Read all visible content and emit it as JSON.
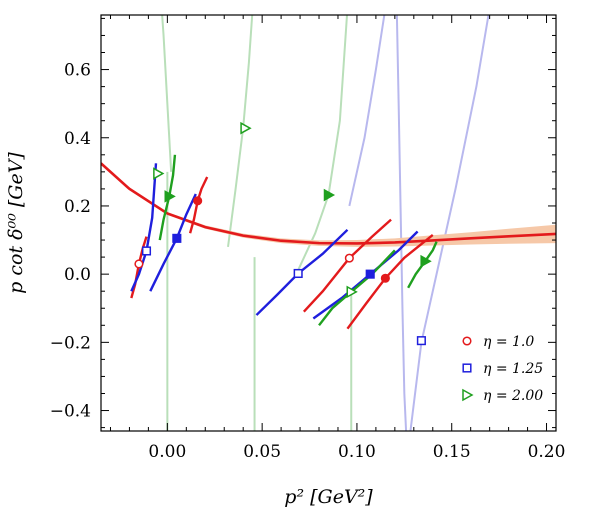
{
  "chart_data": {
    "type": "scatter",
    "xlabel": "p² [GeV²]",
    "ylabel": "p cot δ⁰⁰ [GeV]",
    "xlim": [
      -0.035,
      0.205
    ],
    "ylim": [
      -0.46,
      0.76
    ],
    "xticks": [
      0.0,
      0.05,
      0.1,
      0.15,
      0.2
    ],
    "xtick_labels": [
      "0.00",
      "0.05",
      "0.10",
      "0.15",
      "0.20"
    ],
    "yticks": [
      -0.4,
      -0.2,
      0.0,
      0.2,
      0.4,
      0.6
    ],
    "ytick_labels": [
      "−0.4",
      "−0.2",
      "0.0",
      "0.2",
      "0.4",
      "0.6"
    ],
    "legend_position": "bottom-right",
    "colors": {
      "eta1": "#e31a1c",
      "eta125": "#1f1fdd",
      "eta2": "#1fa01f",
      "fit": "#e31a1c",
      "band": "#f6c8a8",
      "faint_green": "#b9dfb9",
      "faint_blue": "#b8b8ee"
    },
    "series": [
      {
        "name": "η = 1.0",
        "marker": "circle",
        "color": "#e31a1c",
        "points": [
          {
            "x": -0.015,
            "y": 0.03,
            "filled": false
          },
          {
            "x": 0.016,
            "y": 0.215,
            "filled": true
          },
          {
            "x": 0.096,
            "y": 0.047,
            "filled": false
          },
          {
            "x": 0.115,
            "y": -0.012,
            "filled": true
          }
        ]
      },
      {
        "name": "η = 1.25",
        "marker": "square",
        "color": "#1f1fdd",
        "points": [
          {
            "x": -0.011,
            "y": 0.068,
            "filled": false
          },
          {
            "x": 0.005,
            "y": 0.105,
            "filled": true
          },
          {
            "x": 0.069,
            "y": 0.002,
            "filled": false
          },
          {
            "x": 0.107,
            "y": 0.0,
            "filled": true
          },
          {
            "x": 0.134,
            "y": -0.195,
            "filled": false
          }
        ]
      },
      {
        "name": "η = 2.00",
        "marker": "triangle-right",
        "color": "#1fa01f",
        "points": [
          {
            "x": -0.005,
            "y": 0.295,
            "filled": false
          },
          {
            "x": 0.001,
            "y": 0.228,
            "filled": true
          },
          {
            "x": 0.041,
            "y": 0.428,
            "filled": false
          },
          {
            "x": 0.085,
            "y": 0.232,
            "filled": true
          },
          {
            "x": 0.097,
            "y": -0.052,
            "filled": false
          },
          {
            "x": 0.136,
            "y": 0.038,
            "filled": true
          }
        ]
      }
    ],
    "fit_curve": {
      "color": "#e31a1c",
      "points": [
        [
          -0.035,
          0.325
        ],
        [
          -0.02,
          0.25
        ],
        [
          0.0,
          0.178
        ],
        [
          0.02,
          0.138
        ],
        [
          0.04,
          0.113
        ],
        [
          0.06,
          0.098
        ],
        [
          0.08,
          0.091
        ],
        [
          0.1,
          0.09
        ],
        [
          0.12,
          0.093
        ],
        [
          0.14,
          0.099
        ],
        [
          0.16,
          0.105
        ],
        [
          0.18,
          0.111
        ],
        [
          0.205,
          0.118
        ]
      ],
      "band_halfwidth": [
        0.003,
        0.004,
        0.004,
        0.005,
        0.006,
        0.007,
        0.008,
        0.01,
        0.012,
        0.015,
        0.018,
        0.022,
        0.027
      ]
    },
    "segments": [
      {
        "color": "#e31a1c",
        "points": [
          [
            -0.019,
            -0.07
          ],
          [
            -0.017,
            -0.03
          ],
          [
            -0.015,
            0.03
          ],
          [
            -0.013,
            0.075
          ],
          [
            -0.011,
            0.11
          ]
        ]
      },
      {
        "color": "#e31a1c",
        "points": [
          [
            0.012,
            0.12
          ],
          [
            0.014,
            0.16
          ],
          [
            0.016,
            0.215
          ],
          [
            0.018,
            0.25
          ],
          [
            0.021,
            0.285
          ]
        ]
      },
      {
        "color": "#e31a1c",
        "points": [
          [
            0.072,
            -0.11
          ],
          [
            0.082,
            -0.05
          ],
          [
            0.096,
            0.047
          ],
          [
            0.108,
            0.11
          ],
          [
            0.118,
            0.16
          ]
        ]
      },
      {
        "color": "#e31a1c",
        "points": [
          [
            0.095,
            -0.16
          ],
          [
            0.105,
            -0.085
          ],
          [
            0.115,
            -0.012
          ],
          [
            0.125,
            0.048
          ],
          [
            0.14,
            0.115
          ]
        ]
      },
      {
        "color": "#1f1fdd",
        "points": [
          [
            -0.019,
            -0.05
          ],
          [
            -0.015,
            0.0
          ],
          [
            -0.011,
            0.068
          ],
          [
            -0.008,
            0.165
          ],
          [
            -0.006,
            0.325
          ]
        ]
      },
      {
        "color": "#1f1fdd",
        "points": [
          [
            -0.009,
            -0.05
          ],
          [
            -0.002,
            0.03
          ],
          [
            0.005,
            0.105
          ],
          [
            0.01,
            0.175
          ],
          [
            0.015,
            0.235
          ]
        ]
      },
      {
        "color": "#1f1fdd",
        "points": [
          [
            0.047,
            -0.12
          ],
          [
            0.058,
            -0.06
          ],
          [
            0.069,
            0.002
          ],
          [
            0.082,
            0.06
          ],
          [
            0.095,
            0.13
          ]
        ]
      },
      {
        "color": "#1f1fdd",
        "points": [
          [
            0.077,
            -0.13
          ],
          [
            0.092,
            -0.07
          ],
          [
            0.107,
            0.0
          ],
          [
            0.122,
            0.07
          ],
          [
            0.132,
            0.125
          ]
        ]
      },
      {
        "color": "#1fa01f",
        "points": [
          [
            -0.004,
            0.1
          ],
          [
            -0.002,
            0.16
          ],
          [
            0.001,
            0.228
          ],
          [
            0.003,
            0.29
          ],
          [
            0.004,
            0.35
          ]
        ]
      },
      {
        "color": "#1fa01f",
        "points": [
          [
            0.08,
            -0.15
          ],
          [
            0.087,
            -0.1
          ],
          [
            0.097,
            -0.052
          ],
          [
            0.108,
            0.0
          ],
          [
            0.12,
            0.07
          ]
        ]
      },
      {
        "color": "#1fa01f",
        "points": [
          [
            0.127,
            -0.04
          ],
          [
            0.131,
            0.0
          ],
          [
            0.136,
            0.038
          ],
          [
            0.14,
            0.07
          ],
          [
            0.142,
            0.095
          ]
        ]
      }
    ],
    "faint_curves": [
      {
        "color": "#b9dfb9",
        "points": [
          [
            -0.003,
            0.78
          ],
          [
            -0.002,
            0.7
          ],
          [
            -0.001,
            0.6
          ],
          [
            0.0,
            0.5
          ],
          [
            0.001,
            0.4
          ],
          [
            0.002,
            0.3
          ]
        ]
      },
      {
        "color": "#b9dfb9",
        "points": [
          [
            0.0,
            -0.47
          ],
          [
            0.0,
            0.0
          ],
          [
            0.0,
            0.3
          ]
        ]
      },
      {
        "color": "#b9dfb9",
        "points": [
          [
            0.032,
            0.08
          ],
          [
            0.036,
            0.25
          ],
          [
            0.04,
            0.43
          ],
          [
            0.043,
            0.62
          ],
          [
            0.045,
            0.78
          ]
        ]
      },
      {
        "color": "#b9dfb9",
        "points": [
          [
            0.046,
            -0.47
          ],
          [
            0.046,
            0.0
          ],
          [
            0.046,
            0.05
          ]
        ]
      },
      {
        "color": "#b9dfb9",
        "points": [
          [
            0.068,
            0.0
          ],
          [
            0.078,
            0.12
          ],
          [
            0.085,
            0.232
          ],
          [
            0.091,
            0.45
          ],
          [
            0.095,
            0.78
          ]
        ]
      },
      {
        "color": "#b9dfb9",
        "points": [
          [
            0.097,
            -0.47
          ],
          [
            0.097,
            -0.2
          ],
          [
            0.097,
            -0.05
          ]
        ]
      },
      {
        "color": "#b8b8ee",
        "points": [
          [
            0.096,
            0.2
          ],
          [
            0.104,
            0.4
          ],
          [
            0.11,
            0.6
          ],
          [
            0.115,
            0.78
          ]
        ]
      },
      {
        "color": "#b8b8ee",
        "points": [
          [
            0.121,
            0.78
          ],
          [
            0.122,
            0.5
          ],
          [
            0.123,
            0.2
          ],
          [
            0.124,
            -0.1
          ],
          [
            0.125,
            -0.35
          ],
          [
            0.126,
            -0.47
          ]
        ]
      },
      {
        "color": "#b8b8ee",
        "points": [
          [
            0.128,
            -0.47
          ],
          [
            0.134,
            -0.2
          ],
          [
            0.142,
            0.0
          ],
          [
            0.152,
            0.25
          ],
          [
            0.163,
            0.55
          ],
          [
            0.17,
            0.78
          ]
        ]
      }
    ]
  }
}
